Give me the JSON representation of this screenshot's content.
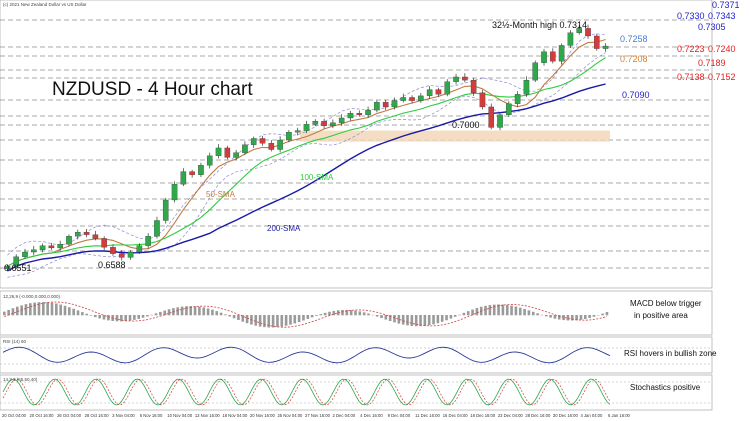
{
  "chart_data": [
    {
      "type": "candlestick",
      "title": "NZDUSD - 4 Hour chart",
      "source_note": "(c) 2021 New Zealand Dollar vs US Dollar",
      "x_tick_labels": [
        "20 Oct 04:00",
        "20 Oct 16:00",
        "26 Oct 04:00",
        "28 Oct 16:00",
        "3 Nov 04:00",
        "5 Nov 16:00",
        "10 Nov 04:00",
        "13 Nov 16:00",
        "18 Nov 04:00",
        "20 Nov 16:00",
        "25 Nov 04:00",
        "27 Nov 16:00",
        "2 Dec 04:00",
        "4 Dec 16:00",
        "9 Dec 04:00",
        "11 Dec 16:00",
        "16 Dec 04:00",
        "18 Dec 16:00",
        "23 Dec 04:00",
        "28 Dec 16:00",
        "30 Dec 16:00",
        "4 Jan 04:00",
        "6 Jan 16:00"
      ],
      "y_range": [
        0.651,
        0.7385
      ],
      "close_series": [
        0.656,
        0.659,
        0.6605,
        0.6612,
        0.6625,
        0.6618,
        0.663,
        0.6655,
        0.6668,
        0.666,
        0.6648,
        0.662,
        0.66,
        0.6588,
        0.6605,
        0.6625,
        0.6655,
        0.6705,
        0.677,
        0.682,
        0.686,
        0.685,
        0.688,
        0.691,
        0.6935,
        0.6905,
        0.692,
        0.6945,
        0.6965,
        0.695,
        0.693,
        0.696,
        0.6985,
        0.699,
        0.701,
        0.702,
        0.7005,
        0.7015,
        0.703,
        0.7045,
        0.704,
        0.7055,
        0.708,
        0.7065,
        0.7085,
        0.7095,
        0.7085,
        0.71,
        0.712,
        0.7105,
        0.7145,
        0.716,
        0.715,
        0.711,
        0.7065,
        0.7,
        0.704,
        0.7075,
        0.7105,
        0.715,
        0.7205,
        0.724,
        0.721,
        0.726,
        0.73,
        0.7314,
        0.729,
        0.725,
        0.7258
      ],
      "moving_averages": [
        {
          "name": "50-SMA",
          "color": "#c07b45",
          "latest": 0.7208
        },
        {
          "name": "100-SMA",
          "color": "#2ecc40",
          "latest": 0.717
        },
        {
          "name": "200-SMA",
          "color": "#1a1aa8",
          "latest": 0.709
        }
      ],
      "lows_marked": [
        0.6551,
        0.6588,
        0.7
      ],
      "highs_marked": [
        {
          "label": "32½-Month high 0.7314",
          "value": 0.7314
        }
      ],
      "annotations": {
        "sma50_label": "50-SMA",
        "sma100_label": "100-SMA",
        "sma200_label": "200-SMA",
        "high_label": "32½-Month high 0.7314",
        "low1": "0.6551",
        "low2": "0.6588",
        "low3": "0.7000"
      },
      "levels": [
        {
          "label": "0.7371",
          "value": 0.7371,
          "color": "#2222cc"
        },
        {
          "label": "0.7330",
          "value": 0.733,
          "color": "#2222cc"
        },
        {
          "label": "0.7343",
          "value": 0.7343,
          "color": "#2222cc"
        },
        {
          "label": "0.7305",
          "value": 0.7305,
          "color": "#2222cc"
        },
        {
          "label": "0.7258",
          "value": 0.7258,
          "color": "#4a7bd0"
        },
        {
          "label": "0.7223",
          "value": 0.7223,
          "color": "#e02020"
        },
        {
          "label": "0.7240",
          "value": 0.724,
          "color": "#e02020"
        },
        {
          "label": "0.7208",
          "value": 0.7208,
          "color": "#e08030"
        },
        {
          "label": "0.7189",
          "value": 0.7189,
          "color": "#e02020"
        },
        {
          "label": "0.7138",
          "value": 0.7138,
          "color": "#e02020"
        },
        {
          "label": "0.7152",
          "value": 0.7152,
          "color": "#e02020"
        },
        {
          "label": "0.7090",
          "value": 0.709,
          "color": "#2222cc"
        }
      ],
      "support_zone": [
        0.6955,
        0.699
      ]
    },
    {
      "type": "histogram",
      "name": "MACD",
      "header": "12,26,9 (-0.000,0.000,0.000)",
      "annotation": "MACD below trigger\nin positive area"
    },
    {
      "type": "line",
      "name": "RSI",
      "header": "RSI (14) 60",
      "annotation": "RSI hovers in bullish zone"
    },
    {
      "type": "line",
      "name": "Stochastics",
      "header": "14,3,3 (55,50,40)",
      "annotation": "Stochastics positive"
    }
  ],
  "labels": {
    "main_title": "NZDUSD - 4 Hour chart",
    "top_note": "(c) 2021 New Zealand Dollar vs US Dollar",
    "macd_note_line1": "MACD below trigger",
    "macd_note_line2": "in positive area",
    "rsi_note": "RSI hovers in bullish zone",
    "stoch_note": "Stochastics positive"
  }
}
